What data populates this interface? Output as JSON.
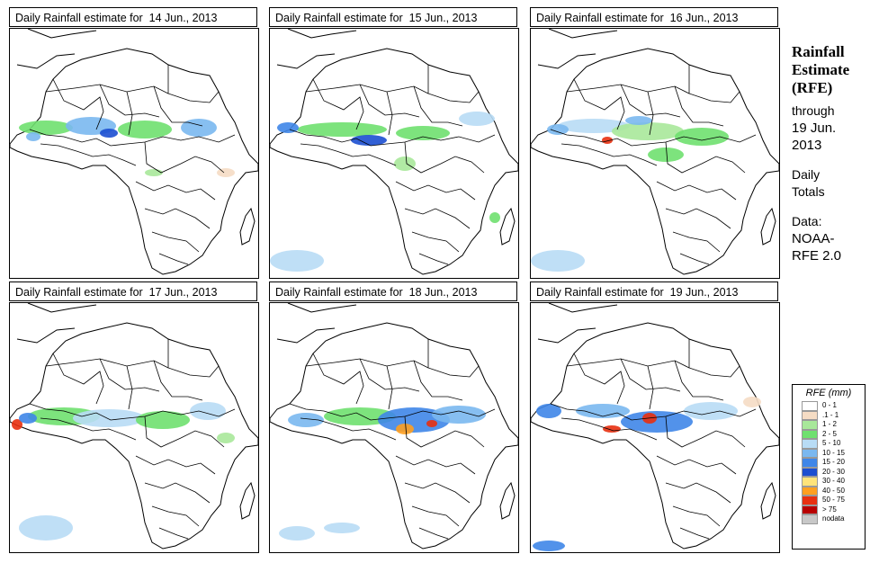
{
  "panels": [
    {
      "title": "Daily Rainfall estimate for  14 Jun., 2013"
    },
    {
      "title": "Daily Rainfall estimate for  15 Jun., 2013"
    },
    {
      "title": "Daily Rainfall estimate for  16 Jun., 2013"
    },
    {
      "title": "Daily Rainfall estimate for  17 Jun., 2013"
    },
    {
      "title": "Daily Rainfall estimate for  18 Jun., 2013"
    },
    {
      "title": "Daily Rainfall estimate for  19 Jun., 2013"
    }
  ],
  "side_panel": {
    "title_line1": "Rainfall",
    "title_line2": "Estimate",
    "title_line3": "(RFE)",
    "through": "through",
    "date_line1": "19 Jun.",
    "date_line2": "2013",
    "daily": "Daily",
    "totals": "Totals",
    "data_label": "Data:",
    "source_line1": "NOAA-",
    "source_line2": "RFE 2.0"
  },
  "legend": {
    "title": "RFE (mm)",
    "items": [
      {
        "label": "0 - 1",
        "color": "#ffffff"
      },
      {
        "label": ".1 - 1",
        "color": "#f5dcc4"
      },
      {
        "label": "1 - 2",
        "color": "#a8e89a"
      },
      {
        "label": "2 - 5",
        "color": "#6fe06f"
      },
      {
        "label": "5 - 10",
        "color": "#b8dcf5"
      },
      {
        "label": "10 - 15",
        "color": "#7ab8f0"
      },
      {
        "label": "15 - 20",
        "color": "#3f86e8"
      },
      {
        "label": "20 - 30",
        "color": "#1c4fd0"
      },
      {
        "label": "30 - 40",
        "color": "#ffe47a"
      },
      {
        "label": "40 - 50",
        "color": "#ffa020"
      },
      {
        "label": "50 - 75",
        "color": "#e83010"
      },
      {
        "label": "> 75",
        "color": "#b80000"
      },
      {
        "label": "nodata",
        "color": "#c8c8c8"
      }
    ]
  }
}
